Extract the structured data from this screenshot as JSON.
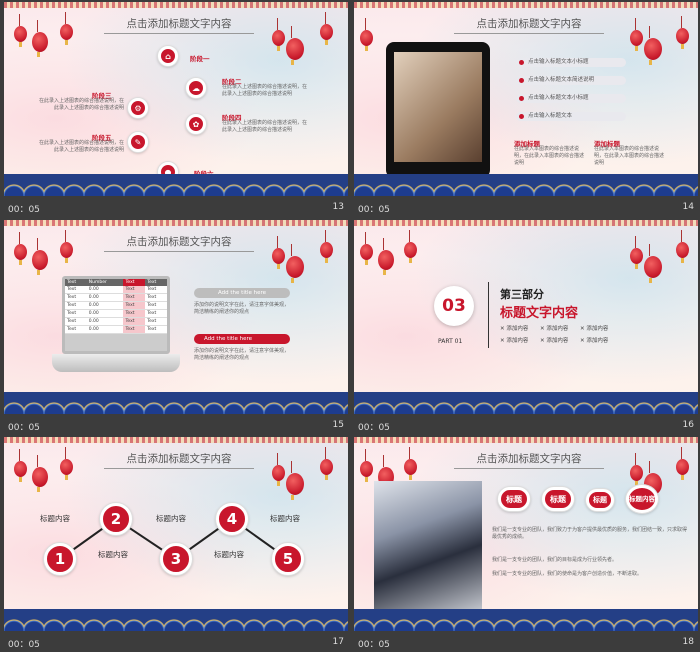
{
  "common": {
    "time": "00：05",
    "header_title": "点击添加标题文字内容"
  },
  "slides": [
    {
      "num": "13",
      "stages": [
        "阶段一",
        "阶段二",
        "阶段三",
        "阶段四",
        "阶段五",
        "阶段六"
      ],
      "desc": "在此录入上述图表的综合描述说明，在此录入上述图表的综合描述说明"
    },
    {
      "num": "14",
      "items": [
        "点击输入标题文本小标题",
        "点击输入标题文本简述说明",
        "点击输入标题文本小标题",
        "点击输入标题文本"
      ],
      "heading1": "添加标题",
      "heading2": "添加标题",
      "desc": "在此录入本图表的综合描述说明，在此录入本图表的综合描述说明"
    },
    {
      "num": "15",
      "table_headers": [
        "Text",
        "Number",
        "Text",
        "Text"
      ],
      "table_rows": [
        [
          "Text",
          "0.00",
          "Text",
          "Text"
        ],
        [
          "Text",
          "0.00",
          "Text",
          "Text"
        ],
        [
          "Text",
          "0.00",
          "Text",
          "Text"
        ],
        [
          "Text",
          "0.00",
          "Text",
          "Text"
        ],
        [
          "Text",
          "0.00",
          "Text",
          "Text"
        ],
        [
          "Text",
          "0.00",
          "Text",
          "Text"
        ]
      ],
      "btn1": "Add the title here",
      "btn2": "Add the title here",
      "desc": "添加你的说明文字在此，请注意字体美观，简洁精练的阐述你的观点"
    },
    {
      "num": "16",
      "big_num": "03",
      "part": "PART 01",
      "section": "第三部分",
      "section_title": "标题文字内容",
      "items": [
        "添加内容",
        "添加内容",
        "添加内容",
        "添加内容",
        "添加内容",
        "添加内容"
      ]
    },
    {
      "num": "17",
      "steps": [
        "1",
        "2",
        "3",
        "4",
        "5"
      ],
      "label": "标题内容"
    },
    {
      "num": "18",
      "arrows": [
        "标题",
        "标题",
        "标题",
        "标题内容"
      ],
      "paras": [
        "我们是一支专业的团队，我们致力于为客户提供最优质的服务，我们团结一致，只求取得最优秀的成绩。",
        "我们是一支专业的团队，我们的目标是成为行业领先者。",
        "我们是一支专业的团队，我们的使命是为客户创造价值，不断进取。"
      ]
    }
  ]
}
